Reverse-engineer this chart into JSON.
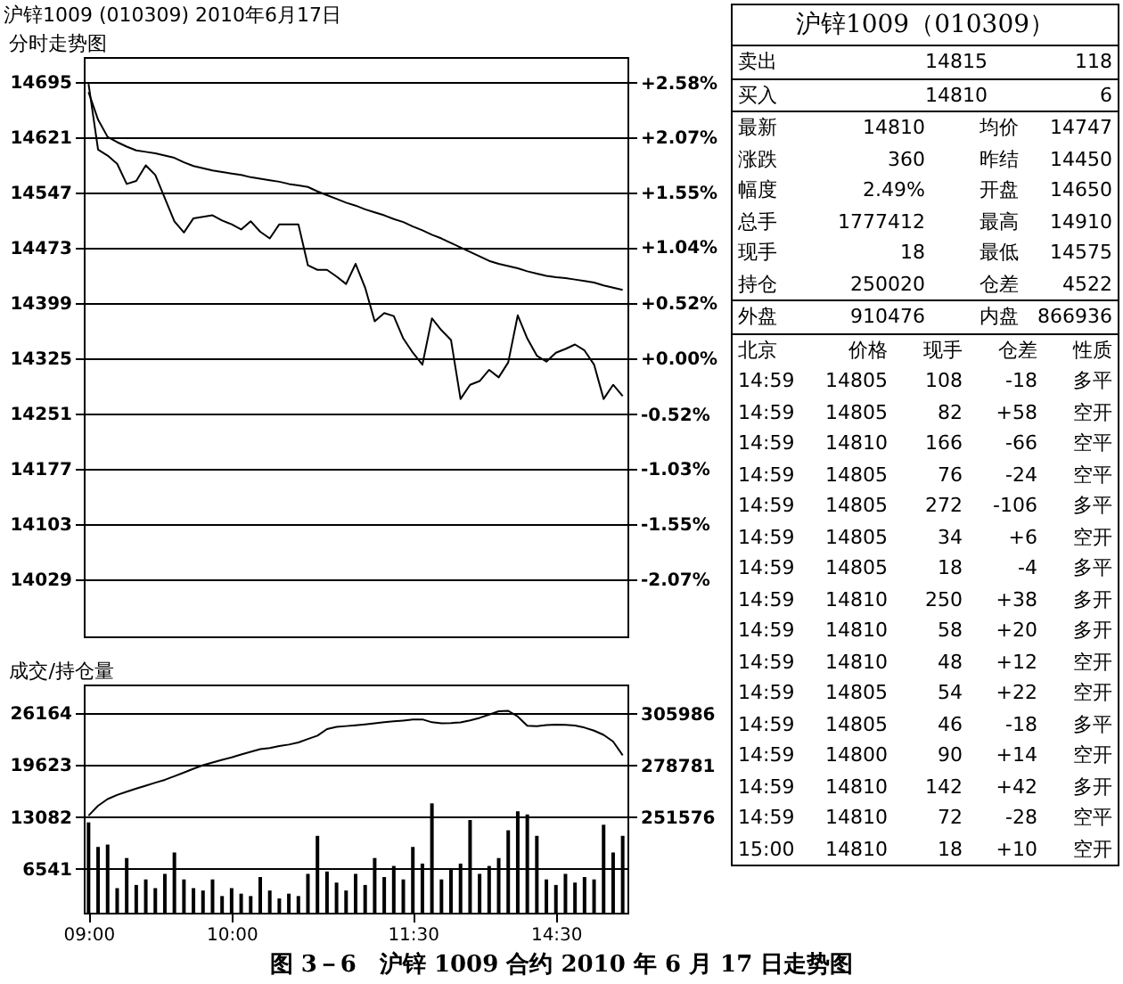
{
  "chart_data": [
    {
      "type": "line",
      "title": "沪锌1009 (010309) 2010年6月17日",
      "subtitle": "分时走势图",
      "annotations": [
        "图 3－6　沪锌 1009 合约 2010 年 6 月 17 日走势图"
      ],
      "categories": [
        null,
        null,
        null,
        null,
        null,
        null,
        null,
        null,
        null,
        null,
        null,
        null,
        null,
        null,
        null,
        null,
        null,
        null,
        null,
        null,
        null,
        null,
        null,
        null,
        null,
        null,
        null,
        null,
        null,
        null,
        null,
        null,
        null,
        null,
        null,
        null,
        null,
        null,
        null,
        null,
        null,
        null,
        null,
        null,
        null,
        null,
        null,
        null,
        null,
        null,
        null,
        null,
        null,
        null,
        null,
        null,
        null
      ],
      "ylim": [
        13953,
        14729
      ],
      "yticks": [
        14029,
        14103,
        14177,
        14251,
        14325,
        14399,
        14473,
        14547,
        14621,
        14695
      ],
      "y2lim": [
        -2.6,
        2.82
      ],
      "y2ticks": [
        {
          "value": 2.58,
          "label": "+2.58%"
        },
        {
          "value": 2.07,
          "label": "+2.07%"
        },
        {
          "value": 1.55,
          "label": "+1.55%"
        },
        {
          "value": 1.04,
          "label": "+1.04%"
        },
        {
          "value": 0.52,
          "label": "+0.52%"
        },
        {
          "value": 0,
          "label": "+0.00%"
        },
        {
          "value": -0.52,
          "label": "-0.52%"
        },
        {
          "value": -1.03,
          "label": "-1.03%"
        },
        {
          "value": -1.55,
          "label": "-1.55%"
        },
        {
          "value": -2.07,
          "label": "-2.07%"
        }
      ],
      "grid": "y",
      "tick_labels": "y",
      "series": [
        {
          "color": "#000000",
          "values": [
            14693,
            14605,
            14597,
            14586,
            14559,
            14563,
            14584,
            14571,
            14540,
            14509,
            14494,
            14513,
            14515,
            14517,
            14510,
            14505,
            14498,
            14509,
            14495,
            14486,
            14505,
            14505,
            14505,
            14450,
            14444,
            14444,
            14435,
            14425,
            14452,
            14420,
            14375,
            14386,
            14382,
            14352,
            14333,
            14317,
            14379,
            14363,
            14350,
            14271,
            14290,
            14295,
            14310,
            14300,
            14320,
            14383,
            14352,
            14329,
            14321,
            14333,
            14338,
            14344,
            14336,
            14317,
            14271,
            14290,
            14275
          ]
        },
        {
          "color": "#000000",
          "values": [
            14682,
            14645,
            14622,
            14615,
            14609,
            14604,
            14602,
            14600,
            14597,
            14594,
            14588,
            14583,
            14580,
            14577,
            14575,
            14573,
            14571,
            14568,
            14566,
            14564,
            14562,
            14559,
            14557,
            14555,
            14549,
            14544,
            14539,
            14534,
            14530,
            14525,
            14521,
            14517,
            14512,
            14508,
            14502,
            14497,
            14491,
            14486,
            14480,
            14474,
            14468,
            14462,
            14456,
            14452,
            14449,
            14446,
            14442,
            14439,
            14436,
            14434,
            14433,
            14431,
            14429,
            14427,
            14423,
            14420,
            14417
          ]
        }
      ]
    },
    {
      "type": "bar",
      "title": "成交/持仓量",
      "categories": [
        "09:00",
        null,
        null,
        null,
        null,
        null,
        null,
        null,
        null,
        null,
        null,
        null,
        null,
        null,
        null,
        "10:00",
        null,
        null,
        null,
        null,
        null,
        null,
        null,
        null,
        null,
        null,
        null,
        null,
        null,
        null,
        null,
        null,
        null,
        null,
        "11:30",
        null,
        null,
        null,
        null,
        null,
        null,
        null,
        null,
        null,
        null,
        null,
        null,
        null,
        null,
        "14:30",
        null,
        null,
        null,
        null,
        null,
        null,
        null
      ],
      "ylim": [
        1000,
        29800
      ],
      "yticks": [
        6541,
        13082,
        19623,
        26164
      ],
      "y2lim": [
        201500,
        321200
      ],
      "y2ticks": [
        251576,
        278781,
        305986
      ],
      "grid": "y",
      "series": [
        {
          "type": "bar",
          "color": "#000000",
          "values": [
            12400,
            9300,
            9600,
            4100,
            7900,
            4500,
            5200,
            4100,
            5900,
            8600,
            5200,
            4100,
            3800,
            5200,
            3100,
            4100,
            3400,
            3100,
            5500,
            3800,
            2800,
            3400,
            3100,
            5900,
            10700,
            6200,
            4800,
            3800,
            5900,
            4500,
            7900,
            5500,
            6900,
            5200,
            9300,
            7200,
            14800,
            5200,
            6500,
            7200,
            12700,
            5900,
            6900,
            7900,
            11400,
            13800,
            13400,
            10700,
            5200,
            4500,
            5900,
            4800,
            5500,
            5200,
            12100,
            8600,
            10700
          ]
        },
        {
          "type": "line",
          "axis": "y2",
          "color": "#000000",
          "values": [
            252400,
            257600,
            261100,
            263300,
            265000,
            266600,
            268100,
            269700,
            271200,
            273100,
            275000,
            277000,
            278900,
            280300,
            281700,
            283000,
            284500,
            285900,
            287300,
            287900,
            288900,
            289700,
            290800,
            292600,
            294400,
            297800,
            299000,
            299400,
            299800,
            300300,
            300900,
            301400,
            301900,
            302300,
            302800,
            302900,
            301400,
            300900,
            301000,
            301300,
            302400,
            303700,
            305400,
            307200,
            307400,
            304400,
            299600,
            299300,
            299900,
            300200,
            300000,
            299700,
            298600,
            297000,
            294800,
            291300,
            284100
          ]
        }
      ]
    },
    {
      "type": "other",
      "title": "沪锌1009（010309）",
      "annotations": [
        "卖出",
        "14815",
        "118",
        "买入",
        "14810",
        "6",
        "最新",
        "14810",
        "均价",
        "14747",
        "涨跌",
        "360",
        "昨结",
        "14450",
        "幅度",
        "2.49%",
        "开盘",
        "14650",
        "总手",
        "1777412",
        "最高",
        "14910",
        "现手",
        "18",
        "最低",
        "14575",
        "持仓",
        "250020",
        "仓差",
        "4522",
        "外盘",
        "910476",
        "内盘",
        "866936",
        "北京",
        "价格",
        "现手",
        "仓差",
        "性质",
        "14:59",
        "14805",
        "108",
        "-18",
        "多平",
        "14:59",
        "14805",
        "82",
        "+58",
        "空开",
        "14:59",
        "14810",
        "166",
        "-66",
        "空平",
        "14:59",
        "14805",
        "76",
        "-24",
        "空平",
        "14:59",
        "14805",
        "272",
        "-106",
        "多平",
        "14:59",
        "14805",
        "34",
        "+6",
        "空开",
        "14:59",
        "14805",
        "18",
        "-4",
        "多平",
        "14:59",
        "14810",
        "250",
        "+38",
        "多开",
        "14:59",
        "14810",
        "58",
        "+20",
        "多开",
        "14:59",
        "14810",
        "48",
        "+12",
        "空开",
        "14:59",
        "14805",
        "54",
        "+22",
        "空开",
        "14:59",
        "14805",
        "46",
        "-18",
        "多平",
        "14:59",
        "14800",
        "90",
        "+14",
        "空开",
        "14:59",
        "14810",
        "142",
        "+42",
        "多开",
        "14:59",
        "14810",
        "72",
        "-28",
        "空平",
        "15:00",
        "14810",
        "18",
        "+10",
        "空开"
      ]
    }
  ]
}
